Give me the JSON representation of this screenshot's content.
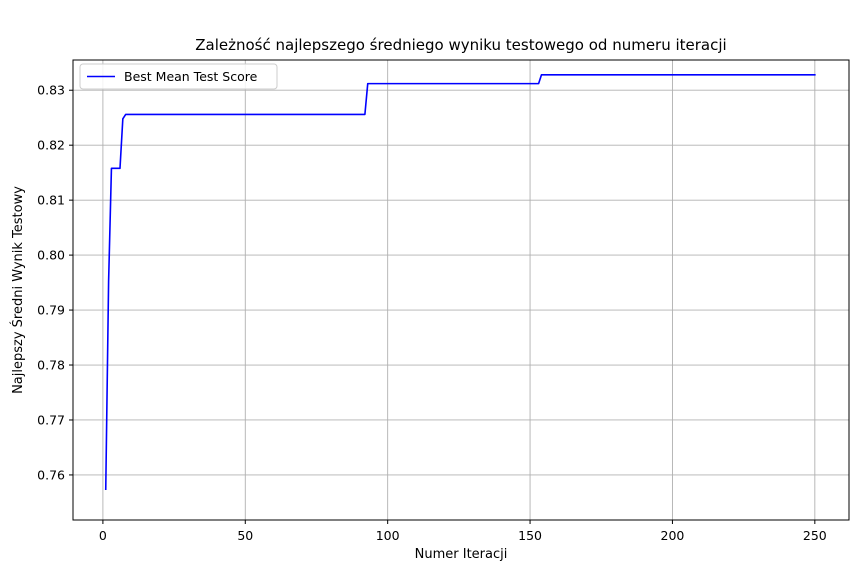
{
  "chart_data": {
    "type": "line",
    "title": "Zależność najlepszego średniego wyniku testowego od numeru iteracji",
    "xlabel": "Numer Iteracji",
    "ylabel": "Najlepszy Średni Wynik Testowy",
    "xlim": [
      -10.5,
      262
    ],
    "ylim": [
      0.7518,
      0.8355
    ],
    "xticks": [
      0,
      50,
      100,
      150,
      200,
      250
    ],
    "xtick_labels": [
      "0",
      "50",
      "100",
      "150",
      "200",
      "250"
    ],
    "yticks": [
      0.76,
      0.77,
      0.78,
      0.79,
      0.8,
      0.81,
      0.82,
      0.83
    ],
    "ytick_labels": [
      "0.76",
      "0.77",
      "0.78",
      "0.79",
      "0.80",
      "0.81",
      "0.82",
      "0.83"
    ],
    "grid": true,
    "legend_position": "top-left",
    "series": [
      {
        "name": "Best Mean Test Score",
        "color": "#0000ff",
        "x": [
          1,
          2,
          3,
          4,
          5,
          6,
          7,
          8,
          9,
          92,
          93,
          153,
          154,
          250
        ],
        "y": [
          0.7574,
          0.7952,
          0.8158,
          0.8158,
          0.8158,
          0.8158,
          0.8248,
          0.8256,
          0.8256,
          0.8256,
          0.8312,
          0.8312,
          0.8328,
          0.8328
        ]
      }
    ]
  }
}
